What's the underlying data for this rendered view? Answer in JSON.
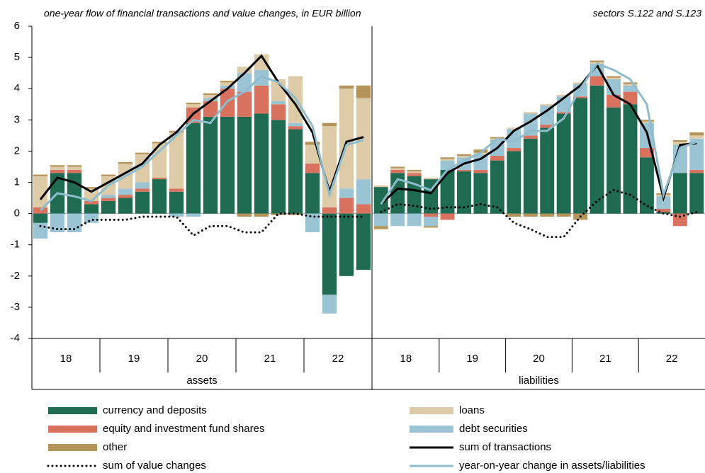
{
  "chart_data": [
    {
      "type": "bar",
      "title": "one-year flow of financial transactions and value changes, in EUR billion",
      "subtitle": "sectors S.122 and S.123",
      "panel": "assets",
      "groups": [
        "18",
        "19",
        "20",
        "21",
        "22"
      ],
      "categories": [
        null,
        null,
        null,
        null,
        null,
        null,
        null,
        null,
        null,
        null,
        null,
        null,
        null,
        null,
        null,
        null,
        null,
        null,
        null,
        null
      ],
      "ylim": [
        -4,
        6
      ],
      "yticks": [
        -4,
        -3,
        -2,
        -1,
        0,
        1,
        2,
        3,
        4,
        5,
        6
      ],
      "series": [
        {
          "name": "currency and deposits",
          "color": "#1e6b52",
          "values": [
            -0.3,
            1.3,
            1.3,
            0.3,
            0.4,
            0.5,
            0.7,
            1.1,
            0.7,
            2.9,
            3.1,
            3.1,
            3.1,
            3.2,
            3.0,
            2.7,
            1.3,
            -2.6,
            -2.0,
            -1.8
          ]
        },
        {
          "name": "equity and investment fund shares",
          "color": "#d9715f",
          "values": [
            0.2,
            0.1,
            0.1,
            0.1,
            0.1,
            0.1,
            0.1,
            0.05,
            0.1,
            0.5,
            0.5,
            0.9,
            0.8,
            0.9,
            0.5,
            0.1,
            0.3,
            0.2,
            0.5,
            0.3
          ]
        },
        {
          "name": "debt securities",
          "color": "#9ac4d4",
          "values": [
            -0.5,
            -0.6,
            -0.6,
            -0.3,
            0.1,
            0.2,
            0.2,
            0.0,
            -0.1,
            -0.1,
            0.1,
            0.1,
            0.6,
            0.5,
            0.1,
            0.1,
            -0.6,
            -0.6,
            0.3,
            0.8
          ]
        },
        {
          "name": "loans",
          "color": "#dccba6",
          "values": [
            1.0,
            0.1,
            0.1,
            0.4,
            0.6,
            0.8,
            0.9,
            1.1,
            1.8,
            0.1,
            0.1,
            0.1,
            0.2,
            0.5,
            0.7,
            1.5,
            0.6,
            2.6,
            3.2,
            2.6
          ]
        },
        {
          "name": "other",
          "color": "#b5945a",
          "values": [
            0.05,
            0.05,
            0.05,
            0.05,
            0.05,
            0.05,
            0.05,
            0.05,
            0.05,
            0.05,
            0.05,
            0.05,
            -0.1,
            -0.1,
            -0.05,
            -0.05,
            0.1,
            0.1,
            0.1,
            0.4
          ]
        },
        {
          "name": "sum of transactions",
          "kind": "line",
          "color": "#000000",
          "values": [
            0.45,
            1.15,
            1.0,
            0.7,
            1.0,
            1.3,
            1.6,
            2.2,
            2.6,
            3.2,
            3.6,
            4.0,
            4.5,
            5.05,
            4.2,
            3.5,
            2.6,
            0.7,
            2.3,
            2.45
          ]
        },
        {
          "name": "sum of value changes",
          "kind": "line",
          "style": "dotted",
          "color": "#000000",
          "values": [
            -0.4,
            -0.5,
            -0.5,
            -0.2,
            -0.2,
            -0.2,
            -0.1,
            -0.1,
            -0.1,
            -0.7,
            -0.4,
            -0.4,
            -0.6,
            -0.6,
            0.0,
            0.0,
            -0.1,
            -0.1,
            -0.1,
            -0.1
          ]
        },
        {
          "name": "year-on-year change in assets/liabilities",
          "kind": "line",
          "color": "#8fbccc",
          "values": [
            0.1,
            0.65,
            0.55,
            0.4,
            0.9,
            1.2,
            1.5,
            2.0,
            2.5,
            3.0,
            2.9,
            3.6,
            3.9,
            4.4,
            4.2,
            3.7,
            2.8,
            0.6,
            2.2,
            2.35
          ]
        }
      ]
    },
    {
      "type": "bar",
      "panel": "liabilities",
      "groups": [
        "18",
        "19",
        "20",
        "21",
        "22"
      ],
      "categories": [
        null,
        null,
        null,
        null,
        null,
        null,
        null,
        null,
        null,
        null,
        null,
        null,
        null,
        null,
        null,
        null,
        null,
        null,
        null,
        null
      ],
      "series": [
        {
          "color": "#1e6b52",
          "values": [
            0.85,
            1.3,
            1.2,
            1.1,
            1.4,
            1.35,
            1.3,
            1.7,
            2.0,
            2.4,
            2.75,
            3.2,
            3.7,
            4.1,
            3.4,
            3.5,
            1.8,
            0.05,
            1.3,
            1.3
          ]
        },
        {
          "color": "#d9715f",
          "values": [
            0,
            0.1,
            0.1,
            -0.1,
            -0.2,
            0.05,
            0.1,
            0.15,
            0.1,
            0.1,
            0.1,
            0.05,
            0.05,
            0.3,
            0.4,
            0.4,
            0.3,
            0.1,
            -0.4,
            0.1
          ]
        },
        {
          "color": "#9ac4d4",
          "values": [
            -0.4,
            -0.4,
            -0.4,
            -0.3,
            0.3,
            0.4,
            0.5,
            0.5,
            0.6,
            0.7,
            0.6,
            0.5,
            0.4,
            0.4,
            0.5,
            0.2,
            0.8,
            0.4,
            0.9,
            1.0
          ]
        },
        {
          "color": "#dccba6",
          "values": [
            0.05,
            0.05,
            0.05,
            0.05,
            0.05,
            0.05,
            0.05,
            0.05,
            0.05,
            0.05,
            0.05,
            0.05,
            0.05,
            0.05,
            0.05,
            0.05,
            0.05,
            0.05,
            0.1,
            0.1
          ]
        },
        {
          "color": "#b5945a",
          "values": [
            -0.1,
            0.05,
            0.05,
            -0.05,
            0.05,
            0.05,
            0.1,
            0.05,
            -0.1,
            -0.1,
            -0.1,
            -0.1,
            -0.2,
            0.05,
            0.05,
            0.05,
            0.05,
            0.05,
            0.05,
            0.1
          ]
        },
        {
          "kind": "line",
          "color": "#000000",
          "values": [
            0.3,
            0.8,
            0.75,
            0.65,
            1.3,
            1.6,
            1.75,
            2.1,
            2.65,
            2.95,
            3.3,
            3.7,
            4.1,
            4.75,
            3.8,
            3.5,
            2.6,
            0.5,
            2.2,
            2.25
          ]
        },
        {
          "kind": "line",
          "style": "dotted",
          "color": "#000000",
          "values": [
            0.05,
            0.3,
            0.25,
            0.15,
            0.2,
            0.2,
            0.3,
            0.2,
            -0.3,
            -0.5,
            -0.75,
            -0.75,
            -0.1,
            0.4,
            0.75,
            0.6,
            0.25,
            0.0,
            -0.1,
            0.05
          ]
        },
        {
          "kind": "line",
          "color": "#8fbccc",
          "values": [
            0.3,
            1.1,
            0.95,
            0.75,
            1.4,
            1.7,
            1.95,
            2.4,
            2.3,
            2.65,
            2.65,
            3.05,
            4.0,
            4.8,
            4.6,
            4.3,
            3.5,
            0.6,
            2.1,
            2.3
          ]
        }
      ]
    }
  ]
}
